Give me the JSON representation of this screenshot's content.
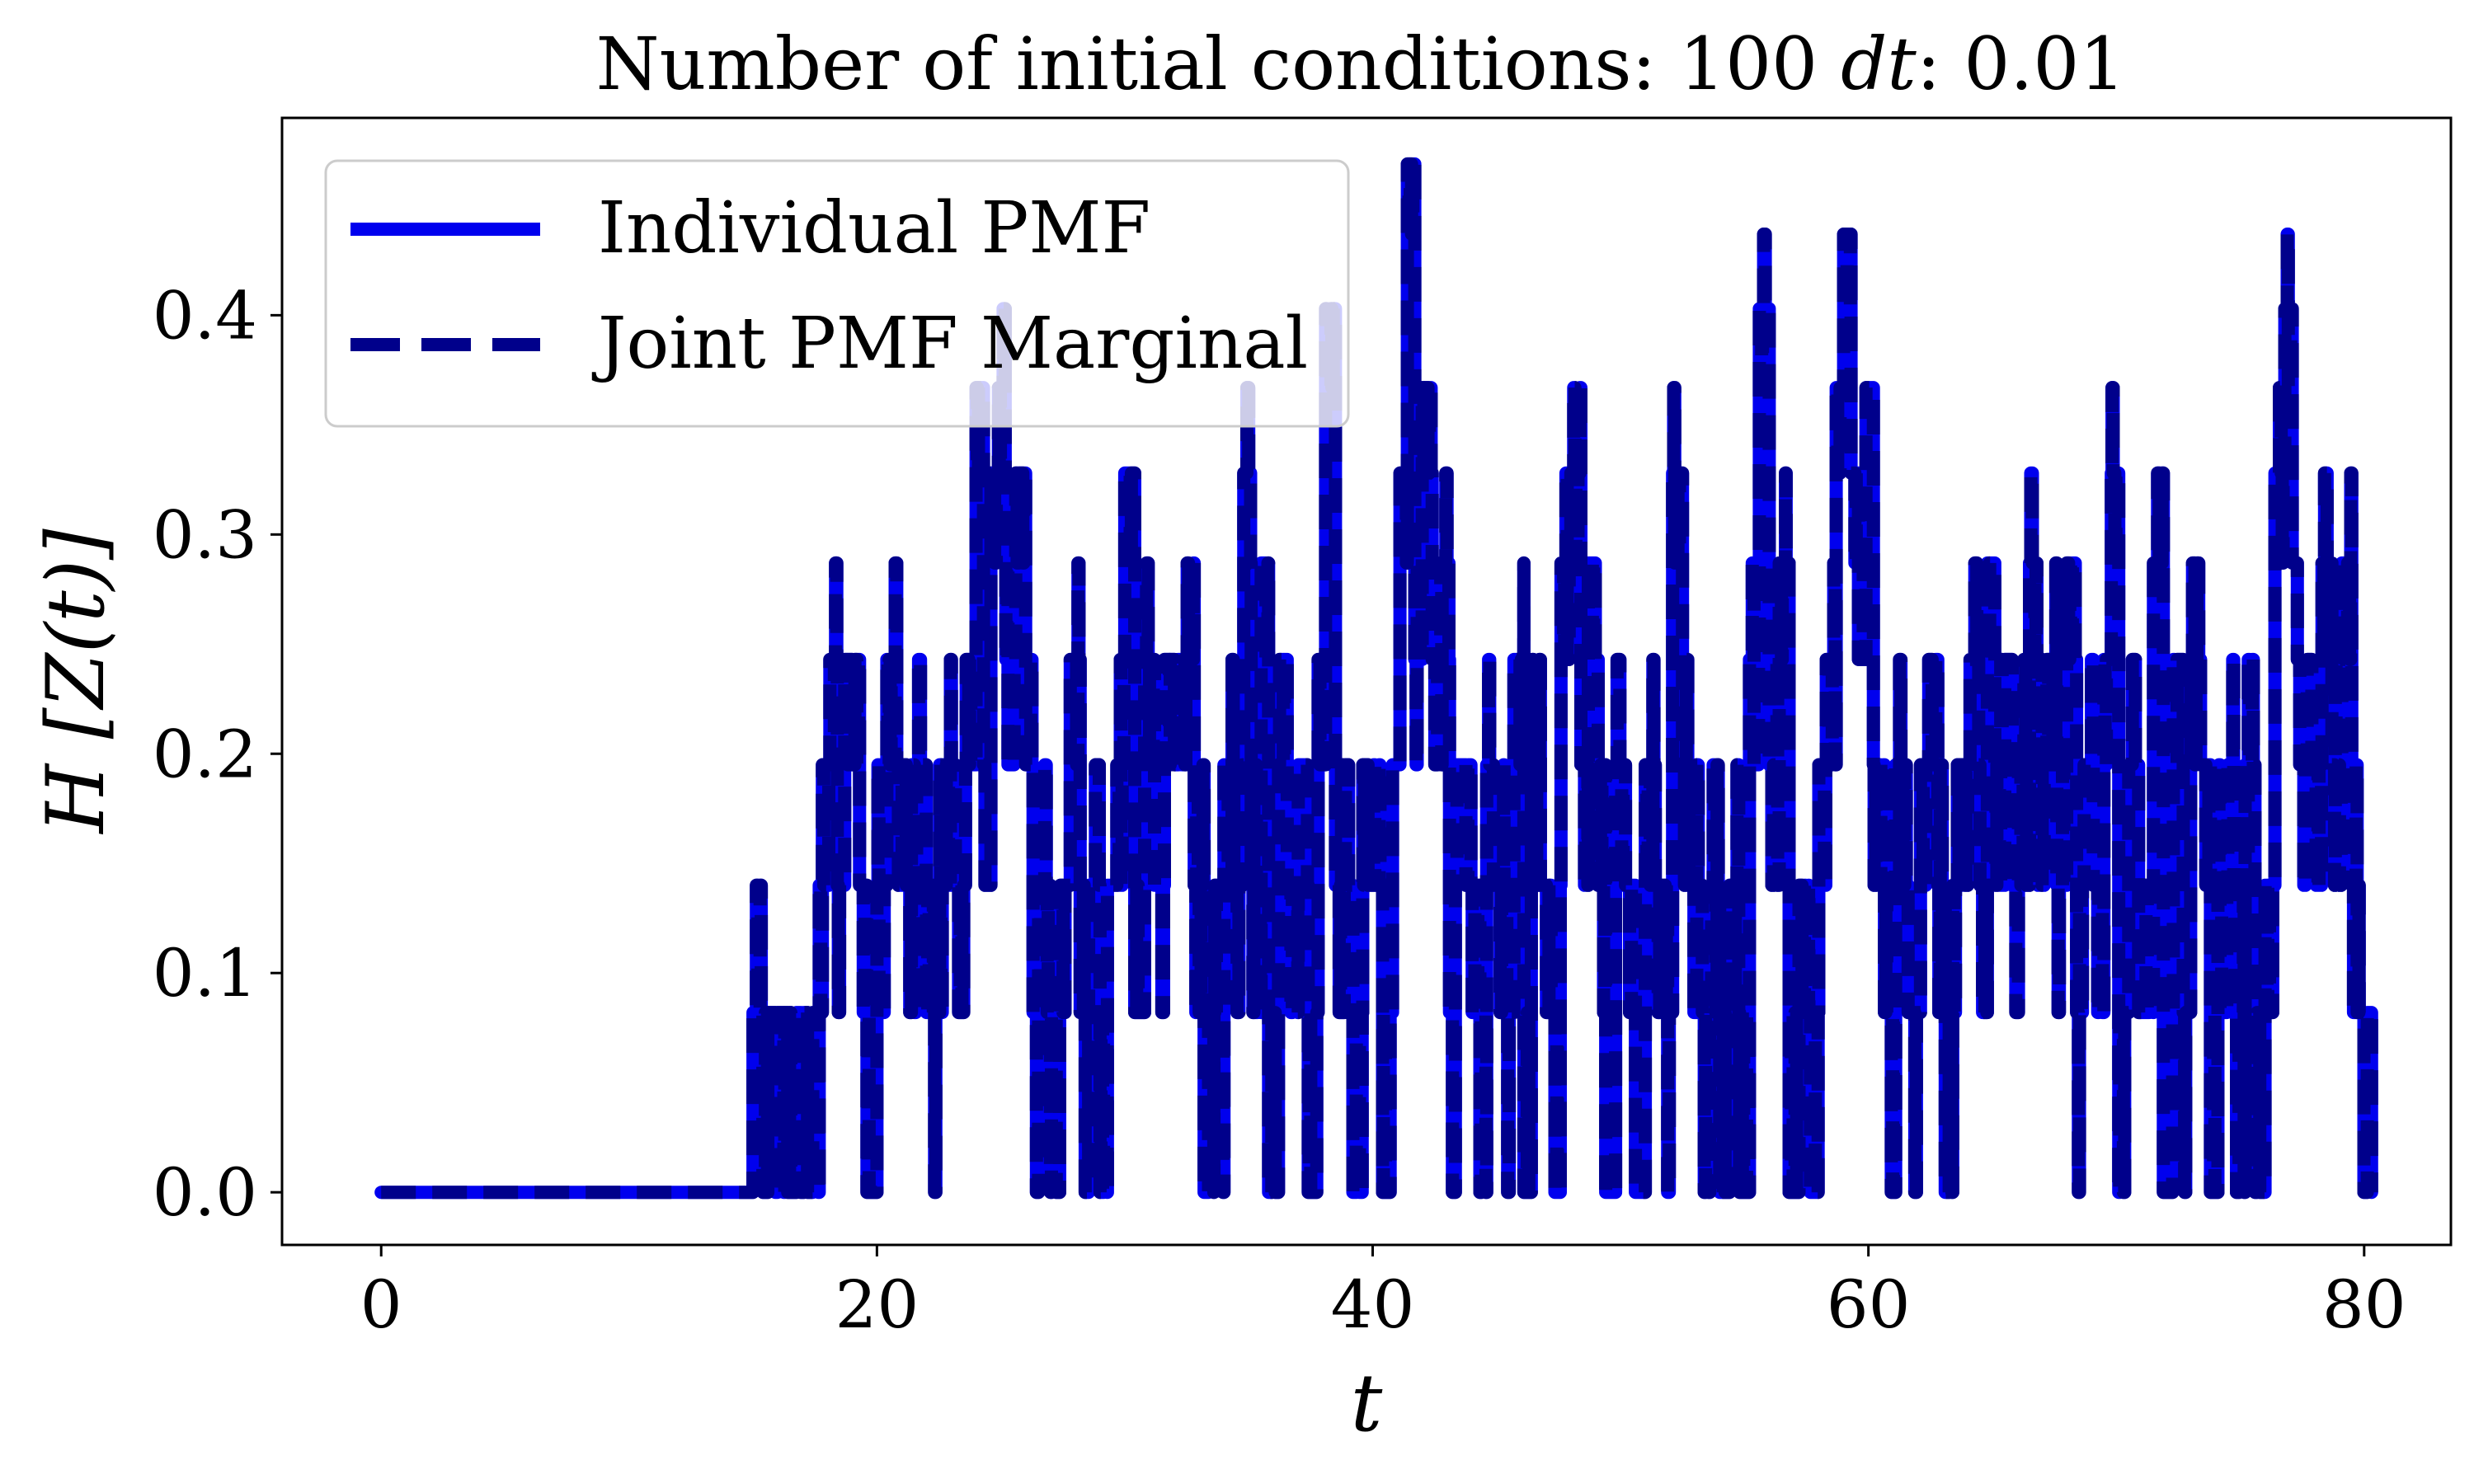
{
  "chart_data": {
    "type": "line",
    "title": "Number of initial conditions: 100 dt: 0.01",
    "title_parts": {
      "lead": "Number of initial conditions: 100 ",
      "symbol": "dt",
      "tail": ": 0.01"
    },
    "xlabel": "t",
    "ylabel": "H [Z(t)]",
    "xlim": [
      -4,
      83.5
    ],
    "ylim": [
      -0.024,
      0.49
    ],
    "xticks": [
      0,
      20,
      40,
      60,
      80
    ],
    "xtick_labels": [
      "0",
      "20",
      "40",
      "60",
      "80"
    ],
    "yticks": [
      0.0,
      0.1,
      0.2,
      0.3,
      0.4
    ],
    "ytick_labels": [
      "0.0",
      "0.1",
      "0.2",
      "0.3",
      "0.4"
    ],
    "grid": false,
    "legend_position": "upper-left",
    "series": [
      {
        "name": "Individual PMF",
        "style": "solid",
        "color": "#0000ee"
      },
      {
        "name": "Joint PMF Marginal",
        "style": "dashed",
        "color": "#00008b"
      }
    ],
    "levels": [
      0.0,
      0.082,
      0.14,
      0.195,
      0.243,
      0.287,
      0.328,
      0.367,
      0.403,
      0.437,
      0.469
    ],
    "steps": [
      [
        0.0,
        0.0
      ],
      [
        15.0,
        0.082
      ],
      [
        15.4,
        0.0
      ],
      [
        15.6,
        0.082
      ],
      [
        15.9,
        0.0
      ],
      [
        16.1,
        0.082
      ],
      [
        16.4,
        0.0
      ],
      [
        16.8,
        0.082
      ],
      [
        17.2,
        0.0
      ],
      [
        17.5,
        0.082
      ],
      [
        17.8,
        0.195
      ],
      [
        18.1,
        0.243
      ],
      [
        18.4,
        0.14
      ],
      [
        18.7,
        0.243
      ],
      [
        19.0,
        0.195
      ],
      [
        19.3,
        0.14
      ],
      [
        19.6,
        0.0
      ],
      [
        20.0,
        0.14
      ],
      [
        20.4,
        0.243
      ],
      [
        20.8,
        0.195
      ],
      [
        21.2,
        0.14
      ],
      [
        21.6,
        0.195
      ],
      [
        22.0,
        0.082
      ],
      [
        22.4,
        0.14
      ],
      [
        22.8,
        0.195
      ],
      [
        23.2,
        0.14
      ],
      [
        23.6,
        0.243
      ],
      [
        24.0,
        0.367
      ],
      [
        24.3,
        0.195
      ],
      [
        24.6,
        0.328
      ],
      [
        24.9,
        0.367
      ],
      [
        25.2,
        0.243
      ],
      [
        25.6,
        0.328
      ],
      [
        26.0,
        0.195
      ],
      [
        26.3,
        0.082
      ],
      [
        26.7,
        0.14
      ],
      [
        27.0,
        0.0
      ],
      [
        27.4,
        0.14
      ],
      [
        27.8,
        0.243
      ],
      [
        28.2,
        0.082
      ],
      [
        28.6,
        0.14
      ],
      [
        29.0,
        0.0
      ],
      [
        29.3,
        0.14
      ],
      [
        29.7,
        0.195
      ],
      [
        30.0,
        0.328
      ],
      [
        30.4,
        0.082
      ],
      [
        30.8,
        0.243
      ],
      [
        31.2,
        0.14
      ],
      [
        31.6,
        0.243
      ],
      [
        32.0,
        0.195
      ],
      [
        32.4,
        0.243
      ],
      [
        32.8,
        0.14
      ],
      [
        33.2,
        0.0
      ],
      [
        33.6,
        0.082
      ],
      [
        34.0,
        0.195
      ],
      [
        34.4,
        0.14
      ],
      [
        34.8,
        0.328
      ],
      [
        35.1,
        0.14
      ],
      [
        35.5,
        0.287
      ],
      [
        35.8,
        0.0
      ],
      [
        36.2,
        0.195
      ],
      [
        36.6,
        0.14
      ],
      [
        37.0,
        0.195
      ],
      [
        37.4,
        0.0
      ],
      [
        37.8,
        0.243
      ],
      [
        38.1,
        0.403
      ],
      [
        38.5,
        0.14
      ],
      [
        38.9,
        0.195
      ],
      [
        39.2,
        0.0
      ],
      [
        39.6,
        0.195
      ],
      [
        40.0,
        0.14
      ],
      [
        40.4,
        0.0
      ],
      [
        40.8,
        0.195
      ],
      [
        41.1,
        0.328
      ],
      [
        41.4,
        0.469
      ],
      [
        41.7,
        0.243
      ],
      [
        42.0,
        0.367
      ],
      [
        42.4,
        0.243
      ],
      [
        42.8,
        0.287
      ],
      [
        43.1,
        0.082
      ],
      [
        43.4,
        0.195
      ],
      [
        43.8,
        0.14
      ],
      [
        44.2,
        0.082
      ],
      [
        44.6,
        0.195
      ],
      [
        45.0,
        0.14
      ],
      [
        45.3,
        0.082
      ],
      [
        45.7,
        0.243
      ],
      [
        46.1,
        0.0
      ],
      [
        46.4,
        0.195
      ],
      [
        46.8,
        0.14
      ],
      [
        47.2,
        0.082
      ],
      [
        47.6,
        0.287
      ],
      [
        48.0,
        0.328
      ],
      [
        48.4,
        0.195
      ],
      [
        48.7,
        0.287
      ],
      [
        49.1,
        0.14
      ],
      [
        49.4,
        0.0
      ],
      [
        49.8,
        0.195
      ],
      [
        50.2,
        0.14
      ],
      [
        50.6,
        0.0
      ],
      [
        51.0,
        0.195
      ],
      [
        51.4,
        0.14
      ],
      [
        51.8,
        0.082
      ],
      [
        52.1,
        0.328
      ],
      [
        52.5,
        0.195
      ],
      [
        52.9,
        0.14
      ],
      [
        53.3,
        0.082
      ],
      [
        53.7,
        0.14
      ],
      [
        54.0,
        0.0
      ],
      [
        54.4,
        0.14
      ],
      [
        54.8,
        0.0
      ],
      [
        55.2,
        0.243
      ],
      [
        55.6,
        0.403
      ],
      [
        56.0,
        0.195
      ],
      [
        56.4,
        0.287
      ],
      [
        56.8,
        0.0
      ],
      [
        57.2,
        0.14
      ],
      [
        57.6,
        0.082
      ],
      [
        58.0,
        0.195
      ],
      [
        58.3,
        0.243
      ],
      [
        58.7,
        0.367
      ],
      [
        59.0,
        0.437
      ],
      [
        59.3,
        0.328
      ],
      [
        59.6,
        0.243
      ],
      [
        59.9,
        0.367
      ],
      [
        60.2,
        0.195
      ],
      [
        60.5,
        0.14
      ],
      [
        60.8,
        0.082
      ],
      [
        61.1,
        0.195
      ],
      [
        61.4,
        0.14
      ],
      [
        61.8,
        0.082
      ],
      [
        62.1,
        0.195
      ],
      [
        62.5,
        0.243
      ],
      [
        62.8,
        0.14
      ],
      [
        63.1,
        0.0
      ],
      [
        63.4,
        0.14
      ],
      [
        63.8,
        0.195
      ],
      [
        64.1,
        0.243
      ],
      [
        64.5,
        0.14
      ],
      [
        64.8,
        0.287
      ],
      [
        65.1,
        0.195
      ],
      [
        65.5,
        0.243
      ],
      [
        65.8,
        0.14
      ],
      [
        66.1,
        0.195
      ],
      [
        66.5,
        0.287
      ],
      [
        66.8,
        0.195
      ],
      [
        67.2,
        0.243
      ],
      [
        67.6,
        0.14
      ],
      [
        68.0,
        0.287
      ],
      [
        68.4,
        0.082
      ],
      [
        68.7,
        0.195
      ],
      [
        69.1,
        0.14
      ],
      [
        69.5,
        0.243
      ],
      [
        69.8,
        0.328
      ],
      [
        70.1,
        0.0
      ],
      [
        70.5,
        0.195
      ],
      [
        70.9,
        0.082
      ],
      [
        71.2,
        0.14
      ],
      [
        71.5,
        0.287
      ],
      [
        71.9,
        0.0
      ],
      [
        72.3,
        0.243
      ],
      [
        72.7,
        0.082
      ],
      [
        73.0,
        0.243
      ],
      [
        73.4,
        0.195
      ],
      [
        73.8,
        0.0
      ],
      [
        74.1,
        0.14
      ],
      [
        74.5,
        0.195
      ],
      [
        74.8,
        0.082
      ],
      [
        75.2,
        0.195
      ],
      [
        75.6,
        0.0
      ],
      [
        76.0,
        0.14
      ],
      [
        76.4,
        0.328
      ],
      [
        76.8,
        0.403
      ],
      [
        77.1,
        0.287
      ],
      [
        77.4,
        0.195
      ],
      [
        77.7,
        0.243
      ],
      [
        78.0,
        0.195
      ],
      [
        78.3,
        0.287
      ],
      [
        78.7,
        0.195
      ],
      [
        79.1,
        0.287
      ],
      [
        79.5,
        0.14
      ],
      [
        79.8,
        0.082
      ],
      [
        80.0,
        0.0
      ],
      [
        80.3,
        0.0
      ]
    ]
  }
}
